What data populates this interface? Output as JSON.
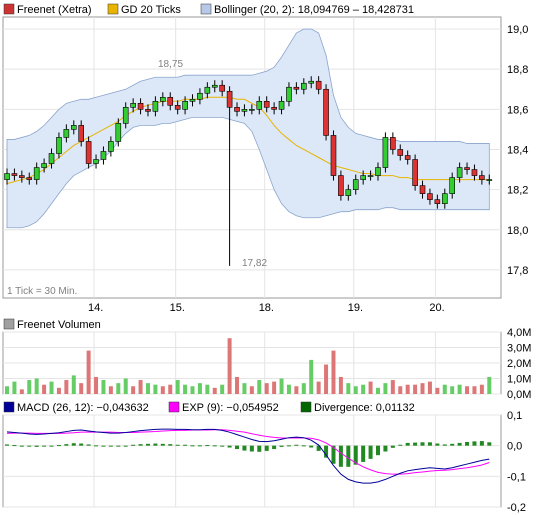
{
  "chart_data": [
    {
      "type": "candlestick",
      "legend": [
        {
          "label": "Freenet (Xetra)",
          "color": "#cc3333"
        },
        {
          "label": "GD 20 Ticks",
          "color": "#e8b400"
        },
        {
          "label": "Bollinger (20, 2): 18,094769 – 18,428731",
          "color": "#b8c8e8"
        }
      ],
      "y_ticks": [
        "19,0",
        "18,8",
        "18,6",
        "18,4",
        "18,2",
        "18,0",
        "17,8"
      ],
      "ylim": [
        17.66,
        19.06
      ],
      "x_ticks": [
        "14.",
        "15.",
        "18.",
        "19.",
        "20."
      ],
      "note": "1 Tick = 30 Min.",
      "annotations": [
        {
          "text": "18,75",
          "x": 20,
          "y": 18.75
        },
        {
          "text": "17,82",
          "x": 30,
          "y": 17.82
        }
      ],
      "close": [
        18.28,
        18.27,
        18.26,
        18.25,
        18.31,
        18.33,
        18.38,
        18.46,
        18.5,
        18.52,
        18.44,
        18.33,
        18.35,
        18.39,
        18.44,
        18.53,
        18.61,
        18.63,
        18.6,
        18.59,
        18.64,
        18.66,
        18.62,
        18.6,
        18.64,
        18.65,
        18.68,
        18.71,
        18.72,
        18.69,
        18.61,
        18.59,
        18.6,
        18.6,
        18.64,
        18.61,
        18.6,
        18.64,
        18.71,
        18.7,
        18.73,
        18.74,
        18.7,
        18.47,
        18.27,
        18.17,
        18.2,
        18.25,
        18.27,
        18.27,
        18.31,
        18.46,
        18.4,
        18.37,
        18.35,
        18.22,
        18.18,
        18.15,
        18.13,
        18.18,
        18.26,
        18.31,
        18.3,
        18.27,
        18.25,
        18.25
      ],
      "bollinger_upper": [
        18.45,
        18.45,
        18.46,
        18.47,
        18.49,
        18.52,
        18.56,
        18.6,
        18.63,
        18.64,
        18.65,
        18.65,
        18.66,
        18.67,
        18.68,
        18.69,
        18.7,
        18.72,
        18.74,
        18.75,
        18.76,
        18.76,
        18.76,
        18.76,
        18.77,
        18.77,
        18.77,
        18.77,
        18.77,
        18.77,
        18.77,
        18.77,
        18.77,
        18.77,
        18.78,
        18.79,
        18.81,
        18.86,
        18.92,
        18.98,
        19.0,
        19.0,
        18.98,
        18.87,
        18.67,
        18.56,
        18.51,
        18.48,
        18.47,
        18.46,
        18.45,
        18.45,
        18.45,
        18.44,
        18.44,
        18.44,
        18.44,
        18.44,
        18.44,
        18.44,
        18.44,
        18.44,
        18.43,
        18.43,
        18.43,
        18.43
      ],
      "bollinger_lower": [
        18.01,
        18.01,
        18.01,
        18.02,
        18.04,
        18.08,
        18.13,
        18.18,
        18.23,
        18.27,
        18.29,
        18.31,
        18.33,
        18.36,
        18.39,
        18.44,
        18.48,
        18.51,
        18.52,
        18.52,
        18.52,
        18.53,
        18.53,
        18.54,
        18.55,
        18.56,
        18.56,
        18.56,
        18.56,
        18.56,
        18.55,
        18.54,
        18.53,
        18.49,
        18.4,
        18.3,
        18.2,
        18.13,
        18.09,
        18.07,
        18.06,
        18.06,
        18.06,
        18.07,
        18.08,
        18.09,
        18.09,
        18.1,
        18.1,
        18.1,
        18.1,
        18.11,
        18.11,
        18.1,
        18.1,
        18.1,
        18.1,
        18.1,
        18.1,
        18.1,
        18.1,
        18.1,
        18.1,
        18.1,
        18.1,
        18.1
      ],
      "moving_average": [
        18.23,
        18.24,
        18.25,
        18.26,
        18.28,
        18.3,
        18.33,
        18.36,
        18.39,
        18.42,
        18.44,
        18.46,
        18.48,
        18.5,
        18.52,
        18.54,
        18.57,
        18.59,
        18.61,
        18.62,
        18.63,
        18.64,
        18.64,
        18.64,
        18.65,
        18.65,
        18.65,
        18.66,
        18.66,
        18.66,
        18.66,
        18.65,
        18.65,
        18.63,
        18.61,
        18.57,
        18.52,
        18.48,
        18.45,
        18.42,
        18.4,
        18.38,
        18.36,
        18.34,
        18.32,
        18.31,
        18.3,
        18.29,
        18.28,
        18.28,
        18.27,
        18.27,
        18.27,
        18.26,
        18.26,
        18.25,
        18.25,
        18.25,
        18.25,
        18.25,
        18.25,
        18.25,
        18.25,
        18.25,
        18.25,
        18.25
      ]
    },
    {
      "type": "bar",
      "legend": [
        {
          "label": "Freenet Volumen",
          "color": "#a0a0a0"
        }
      ],
      "y_ticks": [
        "4,0M",
        "3,0M",
        "2,0M",
        "1,0M",
        "0,0M"
      ],
      "ylim": [
        0,
        4.0
      ],
      "values_m": [
        0.5,
        0.8,
        0.3,
        0.9,
        1.0,
        0.6,
        0.8,
        0.4,
        0.9,
        1.2,
        0.7,
        2.8,
        1.1,
        0.9,
        0.5,
        0.7,
        1.0,
        0.5,
        0.9,
        0.7,
        0.6,
        0.5,
        0.6,
        0.9,
        0.6,
        0.5,
        0.7,
        0.6,
        0.4,
        0.6,
        3.6,
        1.1,
        0.7,
        0.5,
        0.9,
        0.7,
        0.8,
        1.0,
        0.6,
        0.5,
        0.7,
        2.2,
        0.8,
        1.9,
        2.8,
        1.1,
        0.7,
        0.5,
        0.6,
        0.8,
        0.4,
        0.7,
        0.9,
        0.5,
        0.6,
        0.6,
        0.7,
        0.8,
        0.4,
        0.6,
        0.5,
        0.6,
        0.5,
        0.5,
        0.6,
        1.1
      ],
      "up": [
        1,
        1,
        0,
        1,
        1,
        0,
        1,
        0,
        0,
        1,
        0,
        0,
        0,
        1,
        0,
        1,
        1,
        0,
        0,
        1,
        1,
        0,
        0,
        1,
        1,
        1,
        1,
        1,
        0,
        1,
        0,
        0,
        1,
        0,
        1,
        0,
        0,
        1,
        1,
        0,
        1,
        1,
        0,
        0,
        0,
        0,
        1,
        1,
        1,
        0,
        1,
        1,
        0,
        0,
        0,
        0,
        0,
        0,
        0,
        1,
        1,
        1,
        0,
        0,
        0,
        1
      ]
    },
    {
      "type": "line",
      "legend": [
        {
          "label": "MACD (26, 12): −0,043632",
          "color": "#000099"
        },
        {
          "label": "EXP (9): −0,054952",
          "color": "#ff00ff"
        },
        {
          "label": "Divergence: 0,01132",
          "color": "#006600"
        }
      ],
      "y_ticks": [
        "0,1",
        "0,0",
        "-0,1",
        "-0,2"
      ],
      "ylim": [
        -0.2,
        0.1
      ],
      "macd": [
        0.045,
        0.043,
        0.041,
        0.038,
        0.037,
        0.038,
        0.04,
        0.042,
        0.046,
        0.05,
        0.051,
        0.048,
        0.045,
        0.043,
        0.041,
        0.041,
        0.043,
        0.046,
        0.049,
        0.051,
        0.053,
        0.054,
        0.054,
        0.053,
        0.053,
        0.052,
        0.052,
        0.053,
        0.053,
        0.05,
        0.044,
        0.036,
        0.028,
        0.02,
        0.014,
        0.013,
        0.016,
        0.021,
        0.026,
        0.028,
        0.026,
        0.018,
        0.002,
        -0.03,
        -0.065,
        -0.093,
        -0.11,
        -0.118,
        -0.122,
        -0.122,
        -0.118,
        -0.11,
        -0.1,
        -0.09,
        -0.082,
        -0.078,
        -0.075,
        -0.072,
        -0.074,
        -0.076,
        -0.072,
        -0.066,
        -0.06,
        -0.054,
        -0.048,
        -0.044
      ],
      "signal": [
        0.04,
        0.041,
        0.041,
        0.041,
        0.04,
        0.04,
        0.04,
        0.04,
        0.041,
        0.042,
        0.044,
        0.044,
        0.044,
        0.044,
        0.044,
        0.043,
        0.043,
        0.043,
        0.044,
        0.045,
        0.046,
        0.048,
        0.049,
        0.05,
        0.05,
        0.051,
        0.051,
        0.051,
        0.052,
        0.052,
        0.05,
        0.047,
        0.044,
        0.039,
        0.034,
        0.03,
        0.027,
        0.025,
        0.025,
        0.025,
        0.025,
        0.024,
        0.019,
        0.009,
        -0.006,
        -0.024,
        -0.041,
        -0.056,
        -0.069,
        -0.079,
        -0.087,
        -0.091,
        -0.093,
        -0.093,
        -0.091,
        -0.088,
        -0.086,
        -0.083,
        -0.081,
        -0.08,
        -0.078,
        -0.075,
        -0.072,
        -0.068,
        -0.063,
        -0.055
      ],
      "divergence": [
        0.004,
        0.002,
        0.0,
        -0.003,
        -0.004,
        -0.002,
        0.0,
        0.002,
        0.005,
        0.008,
        0.007,
        0.004,
        0.001,
        -0.001,
        -0.003,
        -0.002,
        0.0,
        0.003,
        0.005,
        0.006,
        0.007,
        0.006,
        0.005,
        0.003,
        0.003,
        0.001,
        0.001,
        0.002,
        0.001,
        -0.002,
        -0.006,
        -0.011,
        -0.016,
        -0.019,
        -0.02,
        -0.017,
        -0.011,
        -0.004,
        0.001,
        0.003,
        0.001,
        -0.006,
        -0.017,
        -0.039,
        -0.059,
        -0.069,
        -0.069,
        -0.062,
        -0.053,
        -0.043,
        -0.031,
        -0.019,
        -0.007,
        0.003,
        0.009,
        0.01,
        0.011,
        0.011,
        0.007,
        0.004,
        0.006,
        0.009,
        0.012,
        0.014,
        0.015,
        0.011
      ]
    }
  ]
}
